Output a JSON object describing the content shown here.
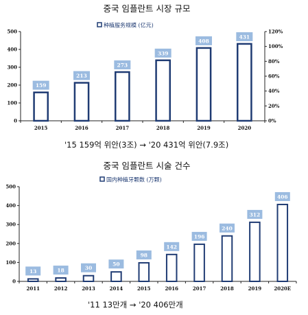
{
  "chart_data": [
    {
      "type": "bar",
      "title": "중국 임플란트 시장 규모",
      "legend": "种植服务规模 (亿元)",
      "categories": [
        "2015",
        "2016",
        "2017",
        "2018",
        "2019",
        "2020"
      ],
      "values": [
        159,
        213,
        273,
        339,
        408,
        431
      ],
      "ylim": [
        0,
        500
      ],
      "yticks": [
        "0",
        "100",
        "200",
        "300",
        "400",
        "500"
      ],
      "y2ticks": [
        "0%",
        "20%",
        "40%",
        "60%",
        "80%",
        "100%",
        "120%"
      ],
      "caption": "'15 159억 위안(3조) → '20 431억 위안(7.9조)"
    },
    {
      "type": "bar",
      "title": "중국 임플란트 시술 건수",
      "legend": "国内种植牙颗数 (万颗)",
      "categories": [
        "2011",
        "2012",
        "2013",
        "2014",
        "2015",
        "2016",
        "2017",
        "2018",
        "2019",
        "2020E"
      ],
      "values": [
        13,
        18,
        30,
        50,
        98,
        142,
        196,
        240,
        312,
        406
      ],
      "ylim": [
        0,
        500
      ],
      "yticks": [
        "0",
        "100",
        "200",
        "300",
        "400",
        "500"
      ],
      "caption": "'11 13만개 → '20 406만개"
    }
  ],
  "colors": {
    "bar_edge": "#1f3b73",
    "label_box": "#9bbbe0",
    "axis": "#222222"
  }
}
